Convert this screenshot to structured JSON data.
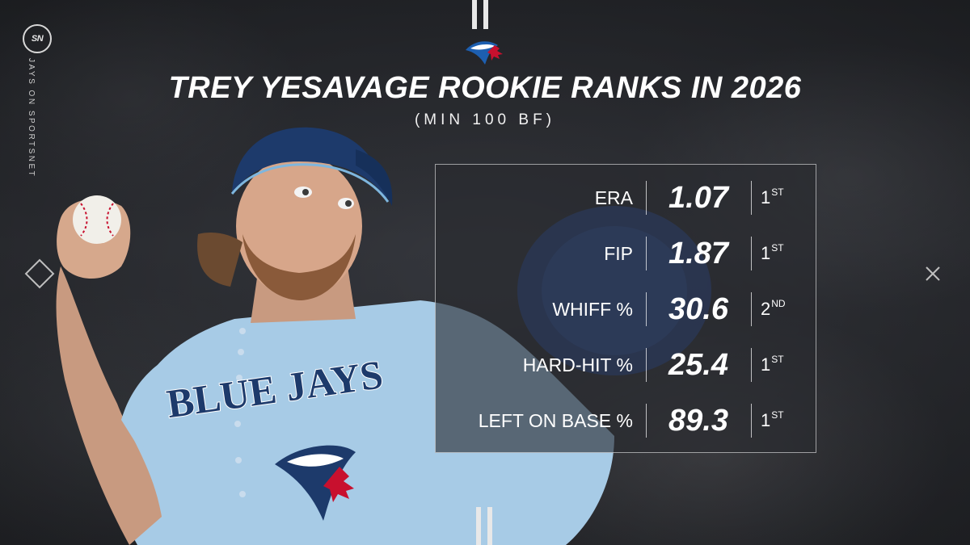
{
  "brand": {
    "logo_text": "SN",
    "vertical_label": "JAYS ON SPORTSNET",
    "team_logo_icon": "blue-jays-logo-icon"
  },
  "header": {
    "title": "TREY YESAVAGE ROOKIE RANKS IN 2026",
    "subtitle": "(MIN 100 BF)"
  },
  "stats": [
    {
      "label": "ERA",
      "value": "1.07",
      "rank": "1",
      "suffix": "ST"
    },
    {
      "label": "FIP",
      "value": "1.87",
      "rank": "1",
      "suffix": "ST"
    },
    {
      "label": "WHIFF %",
      "value": "30.6",
      "rank": "2",
      "suffix": "ND"
    },
    {
      "label": "HARD-HIT %",
      "value": "25.4",
      "rank": "1",
      "suffix": "ST"
    },
    {
      "label": "LEFT ON BASE %",
      "value": "89.3",
      "rank": "1",
      "suffix": "ST"
    }
  ],
  "jersey": {
    "text": "BLUE JAYS"
  },
  "colors": {
    "jersey": "#a7cbe6",
    "cap": "#1d3a6b",
    "accent_red": "#c8102e"
  }
}
